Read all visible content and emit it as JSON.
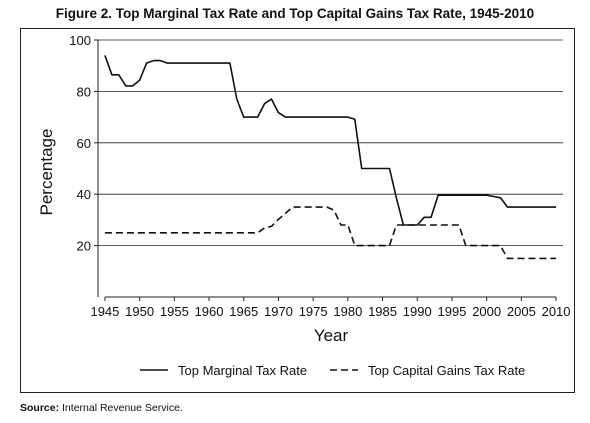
{
  "title": "Figure 2. Top Marginal Tax Rate and Top Capital Gains Tax Rate, 1945-2010",
  "source_label": "Source:",
  "source_text": "Internal Revenue Service.",
  "chart_data": {
    "type": "line",
    "title": "Figure 2. Top Marginal Tax Rate and Top Capital Gains Tax Rate, 1945-2010",
    "xlabel": "Year",
    "ylabel": "Percentage",
    "xlim": [
      1944,
      2011
    ],
    "ylim": [
      0,
      100
    ],
    "xticks": [
      1945,
      1950,
      1955,
      1960,
      1965,
      1970,
      1975,
      1980,
      1985,
      1990,
      1995,
      2000,
      2005,
      2010
    ],
    "yticks": [
      20,
      40,
      60,
      80,
      100
    ],
    "grid": "horizontal",
    "legend_position": "bottom",
    "series": [
      {
        "name": "Top Marginal Tax Rate",
        "style": "solid",
        "color": "#111111",
        "x": [
          1945,
          1946,
          1947,
          1948,
          1949,
          1950,
          1951,
          1952,
          1953,
          1954,
          1955,
          1960,
          1963,
          1964,
          1965,
          1966,
          1967,
          1968,
          1969,
          1970,
          1971,
          1975,
          1980,
          1981,
          1982,
          1983,
          1986,
          1987,
          1988,
          1990,
          1991,
          1992,
          1993,
          2000,
          2001,
          2002,
          2003,
          2010
        ],
        "values": [
          94,
          86.45,
          86.45,
          82.13,
          82.13,
          84.36,
          91,
          92,
          92,
          91,
          91,
          91,
          91,
          77,
          70,
          70,
          70,
          75.25,
          77,
          71.75,
          70,
          70,
          70,
          69.13,
          50,
          50,
          50,
          38.5,
          28,
          28,
          31,
          31,
          39.6,
          39.6,
          39.1,
          38.6,
          35,
          35
        ]
      },
      {
        "name": "Top Capital Gains Tax Rate",
        "style": "dashed",
        "color": "#111111",
        "x": [
          1945,
          1967,
          1968,
          1969,
          1970,
          1971,
          1972,
          1977,
          1978,
          1979,
          1980,
          1981,
          1982,
          1986,
          1987,
          1988,
          1996,
          1997,
          2002,
          2003,
          2010
        ],
        "values": [
          25,
          25,
          26.9,
          27.5,
          30.2,
          32.5,
          35,
          35,
          33.8,
          28,
          28,
          20,
          20,
          20,
          28,
          28,
          28,
          20,
          20,
          15,
          15
        ]
      }
    ]
  }
}
